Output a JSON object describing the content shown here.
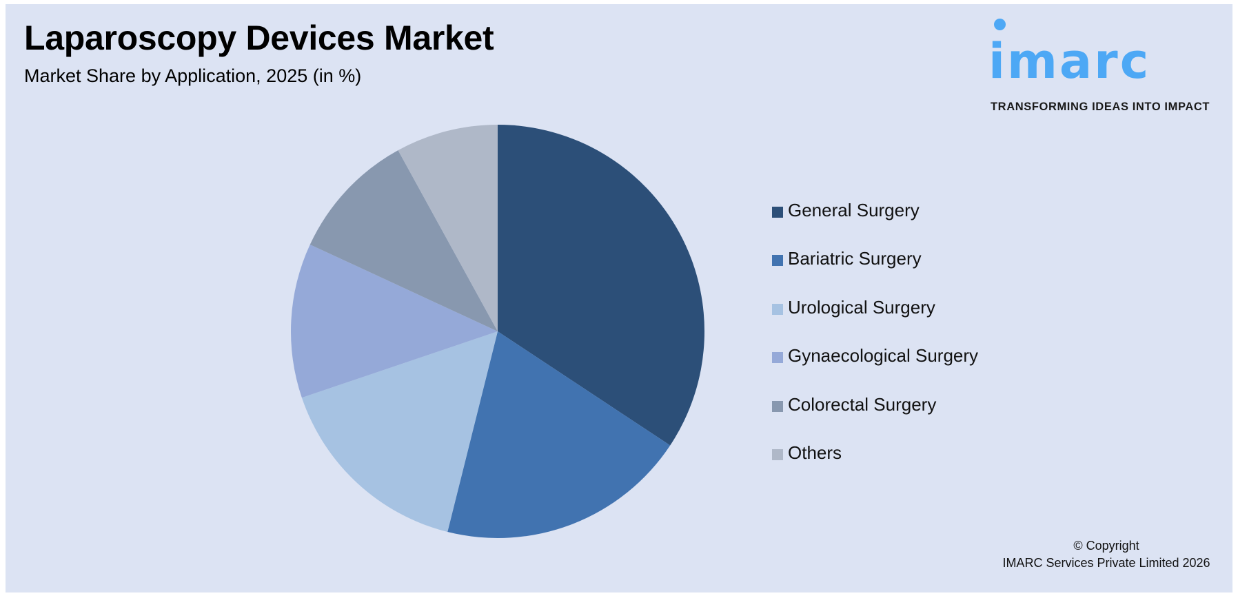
{
  "header": {
    "title": "Laparoscopy Devices Market",
    "subtitle": "Market Share by Application, 2025 (in %)"
  },
  "logo": {
    "wordmark": "imarc",
    "tagline": "TRANSFORMING IDEAS INTO IMPACT",
    "color": "#4DA8F5"
  },
  "footer": {
    "line1": "© Copyright",
    "line2": "IMARC Services Private Limited 2026"
  },
  "colors": {
    "background": "#DCE3F3"
  },
  "chart_data": {
    "type": "pie",
    "title": "Laparoscopy Devices Market",
    "subtitle": "Market Share by Application, 2025 (in %)",
    "start_angle_deg": 0,
    "direction": "clockwise",
    "legend_position": "right",
    "categories": [
      "General Surgery",
      "Bariatric Surgery",
      "Urological Surgery",
      "Gynaecological Surgery",
      "Colorectal Surgery",
      "Others"
    ],
    "values": [
      34.3,
      19.6,
      15.9,
      12.1,
      10.1,
      8.0
    ],
    "colors": [
      "#2C4F78",
      "#4173B0",
      "#A6C2E2",
      "#95A9D8",
      "#8898AF",
      "#AFB8C8"
    ],
    "data_labels_shown": false
  },
  "legend": {
    "items": [
      {
        "label": "General Surgery",
        "color": "#2C4F78"
      },
      {
        "label": "Bariatric Surgery",
        "color": "#4173B0"
      },
      {
        "label": "Urological Surgery",
        "color": "#A6C2E2"
      },
      {
        "label": "Gynaecological Surgery",
        "color": "#95A9D8"
      },
      {
        "label": "Colorectal Surgery",
        "color": "#8898AF"
      },
      {
        "label": "Others",
        "color": "#AFB8C8"
      }
    ]
  }
}
